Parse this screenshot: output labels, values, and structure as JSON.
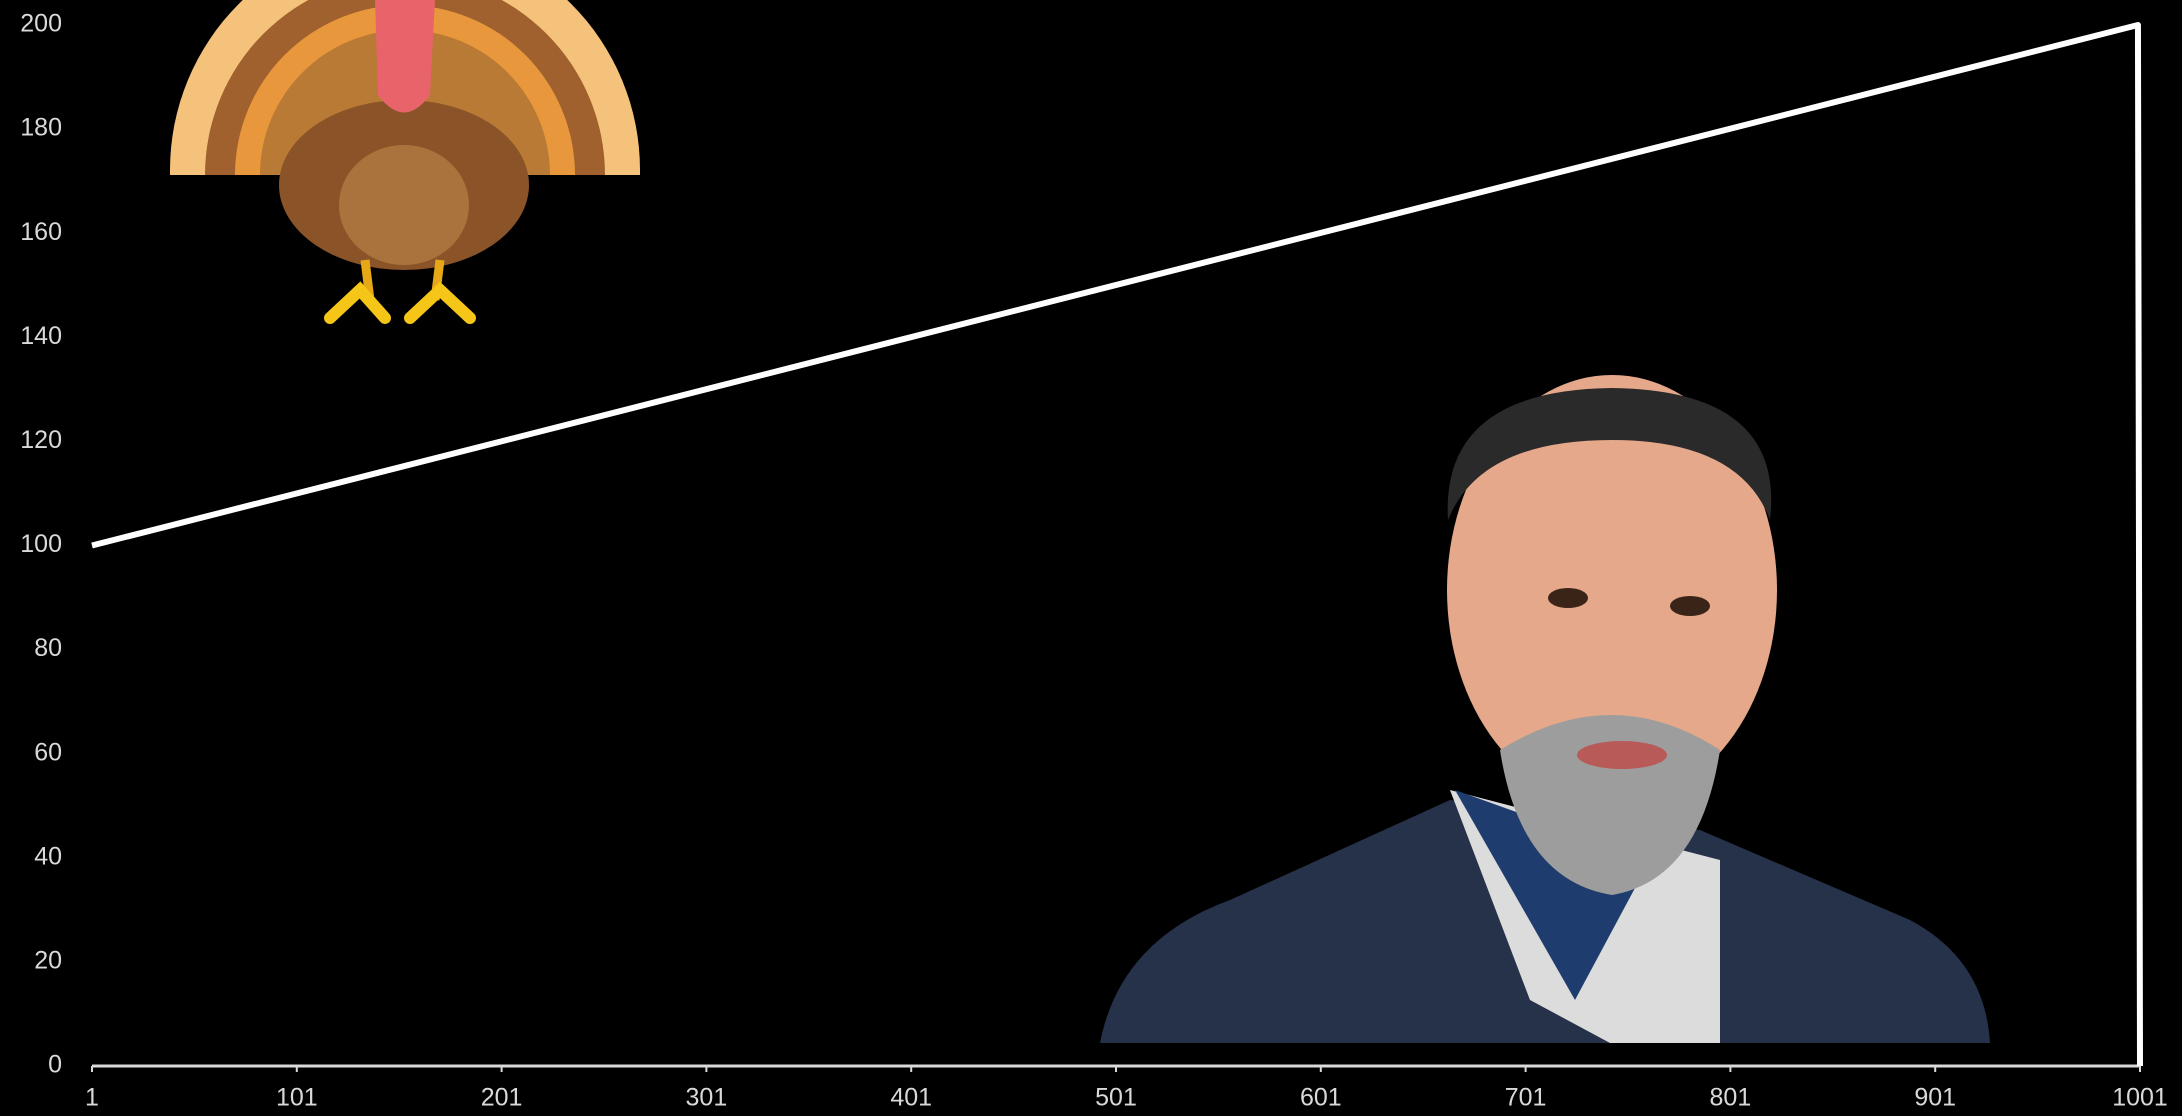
{
  "chart_data": {
    "type": "line",
    "x": [
      1,
      1000,
      1001
    ],
    "series": [
      {
        "color": "#ffffff",
        "values": [
          100,
          200,
          0
        ]
      }
    ],
    "xlim": [
      1,
      1001
    ],
    "xticks": [
      1,
      101,
      201,
      301,
      401,
      501,
      601,
      701,
      801,
      901,
      1001
    ],
    "ylim": [
      0,
      200
    ],
    "yticks": [
      0,
      20,
      40,
      60,
      80,
      100,
      120,
      140,
      160,
      180,
      200
    ]
  }
}
